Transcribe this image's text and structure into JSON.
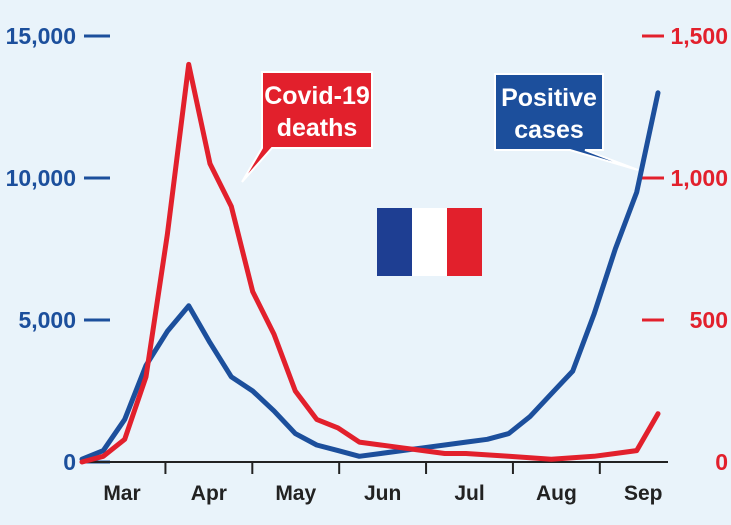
{
  "chart_data": {
    "type": "line",
    "x": [
      "Mar 1",
      "Mar 8",
      "Mar 15",
      "Mar 22",
      "Mar 29",
      "Apr 5",
      "Apr 12",
      "Apr 19",
      "Apr 26",
      "May 3",
      "May 10",
      "May 17",
      "May 24",
      "May 31",
      "Jun 7",
      "Jun 14",
      "Jun 21",
      "Jun 28",
      "Jul 5",
      "Jul 12",
      "Jul 19",
      "Jul 26",
      "Aug 2",
      "Aug 9",
      "Aug 16",
      "Aug 23",
      "Aug 30",
      "Sep 3"
    ],
    "x_tick_labels": [
      "Mar",
      "Apr",
      "May",
      "Jun",
      "Jul",
      "Aug",
      "Sep"
    ],
    "left_axis": {
      "ticks": [
        "15,000",
        "10,000",
        "5,000",
        "0"
      ],
      "ylim": [
        0,
        15000
      ]
    },
    "right_axis": {
      "ticks": [
        "1,500",
        "1,000",
        "500",
        "0"
      ],
      "ylim": [
        0,
        1500
      ]
    },
    "series": [
      {
        "name": "Positive cases",
        "axis": "left",
        "color": "#1c4f9c",
        "values": [
          100,
          400,
          1500,
          3400,
          4600,
          5500,
          4200,
          3000,
          2500,
          1800,
          1000,
          600,
          400,
          200,
          300,
          400,
          500,
          600,
          700,
          800,
          1000,
          1600,
          2400,
          3200,
          5200,
          7500,
          9500,
          13000
        ]
      },
      {
        "name": "Covid-19 deaths",
        "axis": "right",
        "color": "#e2202c",
        "values": [
          0,
          20,
          80,
          300,
          800,
          1400,
          1050,
          900,
          600,
          450,
          250,
          150,
          120,
          70,
          60,
          50,
          40,
          30,
          30,
          25,
          20,
          15,
          10,
          15,
          20,
          30,
          40,
          170
        ]
      }
    ],
    "annotations": [
      {
        "label_lines": [
          "Covid-19",
          "deaths"
        ],
        "series": "Covid-19 deaths",
        "color": "#e2202c"
      },
      {
        "label_lines": [
          "Positive",
          "cases"
        ],
        "series": "Positive cases",
        "color": "#1c4f9c"
      }
    ],
    "flag": {
      "name": "france-flag-icon",
      "colors": [
        "#1e3e92",
        "#ffffff",
        "#e2202c"
      ]
    },
    "grid": false,
    "background": "#e9f3fa"
  }
}
